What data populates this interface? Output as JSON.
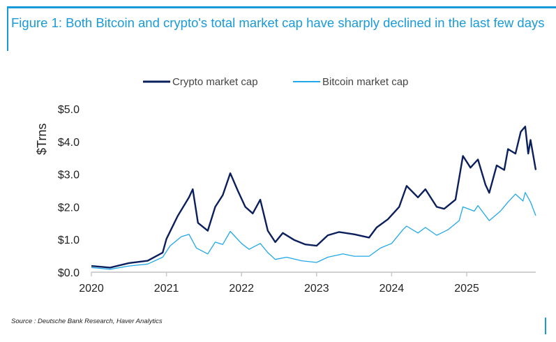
{
  "title": "Figure 1: Both Bitcoin and crypto's total market cap have sharply declined in the last few days",
  "source": "Source : Deutsche Bank Research, Haver Analytics",
  "chart_data": {
    "type": "line",
    "title": "Figure 1: Both Bitcoin and crypto's total market cap have sharply declined in the last few days",
    "xlabel": "",
    "ylabel": "$Trns",
    "xlim": [
      2020,
      2025.92
    ],
    "ylim": [
      0,
      5
    ],
    "x_ticks": [
      "2020",
      "2021",
      "2022",
      "2023",
      "2024",
      "2025"
    ],
    "y_ticks": [
      "$0.0",
      "$1.0",
      "$2.0",
      "$3.0",
      "$4.0",
      "$5.0"
    ],
    "grid": false,
    "legend": "top",
    "series": [
      {
        "name": "Crypto market cap",
        "color": "#0b1f5c",
        "width": 2.4,
        "x": [
          2020.0,
          2020.25,
          2020.5,
          2020.75,
          2020.95,
          2021.0,
          2021.15,
          2021.3,
          2021.35,
          2021.42,
          2021.55,
          2021.65,
          2021.75,
          2021.85,
          2021.95,
          2022.05,
          2022.15,
          2022.25,
          2022.35,
          2022.45,
          2022.55,
          2022.7,
          2022.85,
          2023.0,
          2023.15,
          2023.3,
          2023.5,
          2023.7,
          2023.8,
          2023.95,
          2024.1,
          2024.2,
          2024.35,
          2024.45,
          2024.6,
          2024.7,
          2024.85,
          2024.95,
          2025.05,
          2025.15,
          2025.25,
          2025.3,
          2025.4,
          2025.5,
          2025.55,
          2025.65,
          2025.72,
          2025.78,
          2025.82,
          2025.85,
          2025.92
        ],
        "y": [
          0.19,
          0.14,
          0.28,
          0.35,
          0.6,
          1.02,
          1.72,
          2.29,
          2.54,
          1.51,
          1.27,
          2.0,
          2.36,
          3.03,
          2.5,
          2.0,
          1.8,
          2.22,
          1.27,
          0.92,
          1.2,
          0.99,
          0.85,
          0.81,
          1.13,
          1.23,
          1.16,
          1.06,
          1.37,
          1.62,
          2.0,
          2.64,
          2.29,
          2.54,
          2.0,
          1.94,
          2.22,
          3.56,
          3.2,
          3.45,
          2.68,
          2.43,
          3.27,
          3.13,
          3.77,
          3.63,
          4.3,
          4.46,
          3.63,
          4.05,
          3.13
        ]
      },
      {
        "name": "Bitcoin market cap",
        "color": "#21a8e8",
        "width": 1.3,
        "x": [
          2020.0,
          2020.25,
          2020.5,
          2020.75,
          2020.95,
          2021.05,
          2021.2,
          2021.3,
          2021.4,
          2021.55,
          2021.65,
          2021.75,
          2021.85,
          2022.0,
          2022.1,
          2022.25,
          2022.35,
          2022.45,
          2022.6,
          2022.8,
          2023.0,
          2023.15,
          2023.35,
          2023.5,
          2023.7,
          2023.85,
          2024.0,
          2024.15,
          2024.2,
          2024.35,
          2024.45,
          2024.6,
          2024.75,
          2024.9,
          2024.95,
          2025.1,
          2025.15,
          2025.3,
          2025.45,
          2025.55,
          2025.65,
          2025.75,
          2025.78,
          2025.85,
          2025.92
        ],
        "y": [
          0.14,
          0.09,
          0.19,
          0.25,
          0.46,
          0.81,
          1.09,
          1.16,
          0.74,
          0.56,
          0.92,
          0.85,
          1.25,
          0.88,
          0.7,
          0.88,
          0.6,
          0.39,
          0.46,
          0.35,
          0.3,
          0.46,
          0.56,
          0.49,
          0.49,
          0.74,
          0.88,
          1.3,
          1.41,
          1.2,
          1.37,
          1.13,
          1.3,
          1.58,
          2.0,
          1.87,
          2.04,
          1.58,
          1.87,
          2.15,
          2.39,
          2.18,
          2.44,
          2.15,
          1.73
        ]
      }
    ]
  }
}
